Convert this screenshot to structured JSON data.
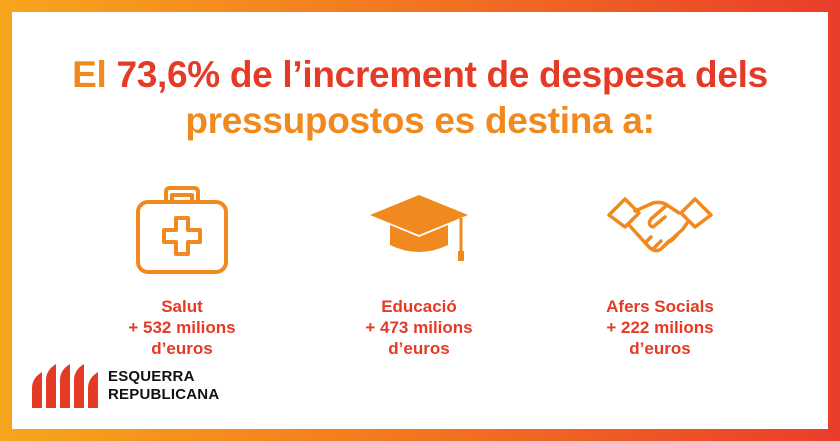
{
  "headline": {
    "line1_a": "El ",
    "line1_b": "73,6%",
    "line1_c": " de l’increment de despesa dels",
    "line2": "pressupostos es destina a:"
  },
  "items": [
    {
      "label": "Salut",
      "amount": "+ 532 milions",
      "unit": "d’euros",
      "icon": "first-aid-kit-icon"
    },
    {
      "label": "Educació",
      "amount": "+ 473 milions",
      "unit": "d’euros",
      "icon": "graduation-cap-icon"
    },
    {
      "label": "Afers Socials",
      "amount": "+ 222 milions",
      "unit": "d’euros",
      "icon": "handshake-icon"
    }
  ],
  "logo": {
    "line1": "ESQUERRA",
    "line2": "REPUBLICANA"
  },
  "colors": {
    "orange": "#f08a1e",
    "red": "#e53a26",
    "gradient_start": "#f7a51d",
    "gradient_end": "#ea3d2a"
  }
}
